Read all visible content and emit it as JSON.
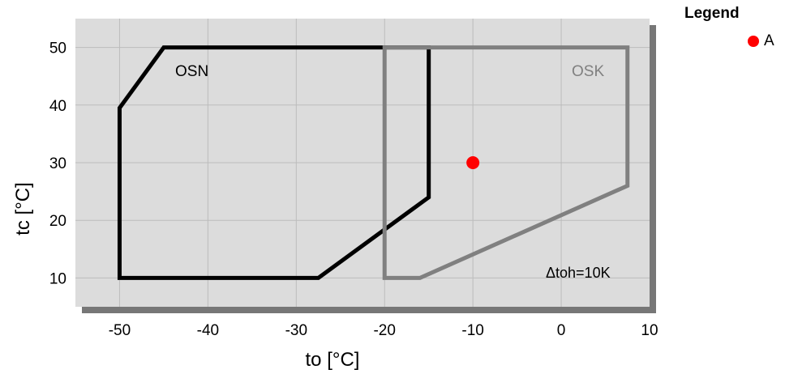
{
  "chart_data": {
    "type": "line",
    "xlabel": "to [°C]",
    "ylabel": "tc [°C]",
    "xlim": [
      -55,
      10
    ],
    "ylim": [
      5,
      55
    ],
    "xticks": [
      -50,
      -40,
      -30,
      -20,
      -10,
      0,
      10
    ],
    "yticks": [
      10,
      20,
      30,
      40,
      50
    ],
    "grid": true,
    "series": [
      {
        "name": "OSN",
        "color": "#000000",
        "closed": true,
        "x": [
          -50,
          -45,
          -15,
          -15,
          -27.5,
          -50
        ],
        "y": [
          39.5,
          50,
          50,
          24,
          10,
          10
        ]
      },
      {
        "name": "OSK",
        "color": "#808080",
        "closed": true,
        "x": [
          -20,
          7.5,
          7.5,
          -16,
          -20
        ],
        "y": [
          50,
          50,
          26,
          10,
          10
        ]
      }
    ],
    "points": [
      {
        "name": "A",
        "x": -10,
        "y": 30,
        "color": "#ff0000"
      }
    ],
    "annotations": [
      {
        "text": "Δtoh=10K"
      }
    ],
    "legend": {
      "title": "Legend",
      "position": "top-right",
      "entries": [
        {
          "label": "A",
          "color": "#ff0000"
        }
      ]
    }
  }
}
